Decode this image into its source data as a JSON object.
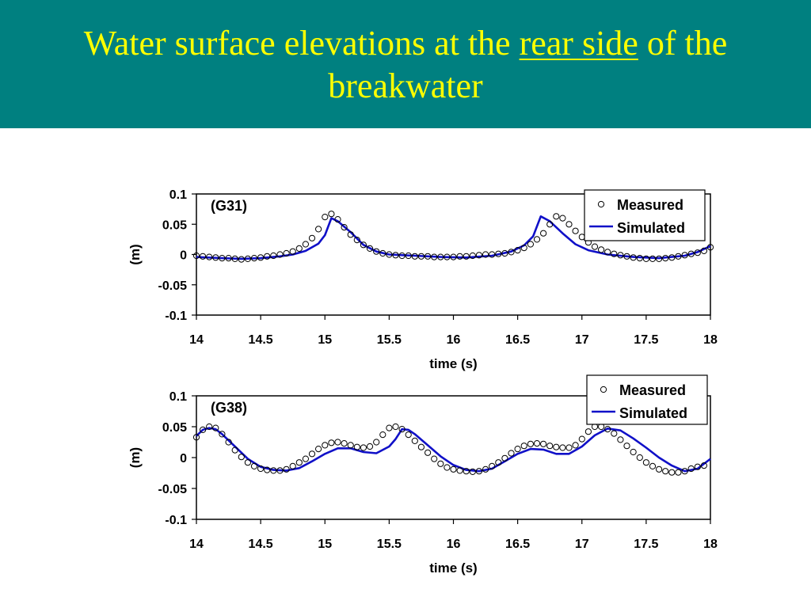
{
  "slide": {
    "title_part1": "Water surface elevations at the ",
    "title_underlined": "rear side",
    "title_part2": " of the breakwater",
    "title_color": "#ffff00",
    "header_color": "#008080"
  },
  "chart_data": [
    {
      "type": "line",
      "annotation": "(G31)",
      "xlabel": "time (s)",
      "ylabel": "(m)",
      "xlim": [
        14,
        18
      ],
      "ylim": [
        -0.1,
        0.1
      ],
      "xticks": [
        "14",
        "14.5",
        "15",
        "15.5",
        "16",
        "16.5",
        "17",
        "17.5",
        "18"
      ],
      "yticks": [
        "0.1",
        "0.05",
        "0",
        "-0.05",
        "-0.1"
      ],
      "grid": false,
      "legend_position": "top-right",
      "series": [
        {
          "name": "Measured",
          "style": "markers",
          "marker": "open-circle",
          "color": "#000000",
          "x": [
            14.0,
            14.05,
            14.1,
            14.15,
            14.2,
            14.25,
            14.3,
            14.35,
            14.4,
            14.45,
            14.5,
            14.55,
            14.6,
            14.65,
            14.7,
            14.75,
            14.8,
            14.85,
            14.9,
            14.95,
            15.0,
            15.05,
            15.1,
            15.15,
            15.2,
            15.25,
            15.3,
            15.35,
            15.4,
            15.45,
            15.5,
            15.55,
            15.6,
            15.65,
            15.7,
            15.75,
            15.8,
            15.85,
            15.9,
            15.95,
            16.0,
            16.05,
            16.1,
            16.15,
            16.2,
            16.25,
            16.3,
            16.35,
            16.4,
            16.45,
            16.5,
            16.55,
            16.6,
            16.65,
            16.7,
            16.75,
            16.8,
            16.85,
            16.9,
            16.95,
            17.0,
            17.05,
            17.1,
            17.15,
            17.2,
            17.25,
            17.3,
            17.35,
            17.4,
            17.45,
            17.5,
            17.55,
            17.6,
            17.65,
            17.7,
            17.75,
            17.8,
            17.85,
            17.9,
            17.95,
            18.0
          ],
          "y": [
            -0.002,
            -0.003,
            -0.004,
            -0.005,
            -0.006,
            -0.006,
            -0.007,
            -0.008,
            -0.007,
            -0.006,
            -0.005,
            -0.003,
            -0.002,
            0.0,
            0.002,
            0.005,
            0.01,
            0.017,
            0.027,
            0.042,
            0.062,
            0.067,
            0.058,
            0.045,
            0.033,
            0.024,
            0.016,
            0.01,
            0.005,
            0.002,
            0.0,
            -0.001,
            -0.002,
            -0.002,
            -0.003,
            -0.003,
            -0.003,
            -0.004,
            -0.004,
            -0.004,
            -0.004,
            -0.003,
            -0.003,
            -0.002,
            -0.001,
            0.0,
            0.0,
            0.001,
            0.002,
            0.004,
            0.007,
            0.011,
            0.017,
            0.025,
            0.035,
            0.05,
            0.063,
            0.06,
            0.05,
            0.039,
            0.029,
            0.02,
            0.013,
            0.008,
            0.004,
            0.001,
            -0.001,
            -0.003,
            -0.005,
            -0.006,
            -0.007,
            -0.007,
            -0.007,
            -0.006,
            -0.005,
            -0.003,
            -0.001,
            0.001,
            0.003,
            0.006,
            0.012
          ]
        },
        {
          "name": "Simulated",
          "style": "line",
          "color": "#1010c8",
          "x": [
            14.0,
            14.2,
            14.35,
            14.5,
            14.65,
            14.75,
            14.85,
            14.95,
            15.0,
            15.05,
            15.1,
            15.2,
            15.3,
            15.4,
            15.5,
            15.7,
            15.9,
            16.1,
            16.3,
            16.45,
            16.55,
            16.62,
            16.68,
            16.75,
            16.85,
            16.95,
            17.05,
            17.2,
            17.4,
            17.6,
            17.8,
            17.9,
            18.0
          ],
          "y": [
            -0.004,
            -0.006,
            -0.007,
            -0.006,
            -0.003,
            0.0,
            0.006,
            0.018,
            0.032,
            0.06,
            0.055,
            0.037,
            0.016,
            0.005,
            0.0,
            -0.002,
            -0.004,
            -0.005,
            -0.002,
            0.005,
            0.015,
            0.03,
            0.063,
            0.055,
            0.035,
            0.017,
            0.007,
            0.0,
            -0.004,
            -0.006,
            -0.002,
            0.004,
            0.014
          ]
        }
      ]
    },
    {
      "type": "line",
      "annotation": "(G38)",
      "xlabel": "time (s)",
      "ylabel": "(m)",
      "xlim": [
        14,
        18
      ],
      "ylim": [
        -0.1,
        0.1
      ],
      "xticks": [
        "14",
        "14.5",
        "15",
        "15.5",
        "16",
        "16.5",
        "17",
        "17.5",
        "18"
      ],
      "yticks": [
        "0.1",
        "0.05",
        "0",
        "-0.05",
        "-0.1"
      ],
      "grid": false,
      "legend_position": "top-right",
      "series": [
        {
          "name": "Measured",
          "style": "markers",
          "marker": "open-circle",
          "color": "#000000",
          "x": [
            14.0,
            14.05,
            14.1,
            14.15,
            14.2,
            14.25,
            14.3,
            14.35,
            14.4,
            14.45,
            14.5,
            14.55,
            14.6,
            14.65,
            14.7,
            14.75,
            14.8,
            14.85,
            14.9,
            14.95,
            15.0,
            15.05,
            15.1,
            15.15,
            15.2,
            15.25,
            15.3,
            15.35,
            15.4,
            15.45,
            15.5,
            15.55,
            15.6,
            15.65,
            15.7,
            15.75,
            15.8,
            15.85,
            15.9,
            15.95,
            16.0,
            16.05,
            16.1,
            16.15,
            16.2,
            16.25,
            16.3,
            16.35,
            16.4,
            16.45,
            16.5,
            16.55,
            16.6,
            16.65,
            16.7,
            16.75,
            16.8,
            16.85,
            16.9,
            16.95,
            17.0,
            17.05,
            17.1,
            17.15,
            17.2,
            17.25,
            17.3,
            17.35,
            17.4,
            17.45,
            17.5,
            17.55,
            17.6,
            17.65,
            17.7,
            17.75,
            17.8,
            17.85,
            17.9,
            17.95
          ],
          "y": [
            0.033,
            0.045,
            0.05,
            0.048,
            0.038,
            0.025,
            0.012,
            0.001,
            -0.008,
            -0.014,
            -0.018,
            -0.02,
            -0.021,
            -0.021,
            -0.019,
            -0.014,
            -0.008,
            -0.002,
            0.006,
            0.014,
            0.02,
            0.024,
            0.025,
            0.023,
            0.02,
            0.017,
            0.016,
            0.018,
            0.025,
            0.037,
            0.048,
            0.05,
            0.046,
            0.037,
            0.027,
            0.017,
            0.008,
            -0.002,
            -0.01,
            -0.016,
            -0.019,
            -0.021,
            -0.022,
            -0.023,
            -0.022,
            -0.019,
            -0.014,
            -0.008,
            -0.001,
            0.007,
            0.014,
            0.019,
            0.022,
            0.023,
            0.022,
            0.019,
            0.017,
            0.016,
            0.016,
            0.02,
            0.03,
            0.042,
            0.05,
            0.05,
            0.046,
            0.039,
            0.029,
            0.019,
            0.009,
            0.0,
            -0.008,
            -0.014,
            -0.019,
            -0.022,
            -0.024,
            -0.024,
            -0.022,
            -0.018,
            -0.015,
            -0.013
          ]
        },
        {
          "name": "Simulated",
          "style": "line",
          "color": "#1010c8",
          "x": [
            14.0,
            14.05,
            14.1,
            14.15,
            14.2,
            14.3,
            14.4,
            14.5,
            14.6,
            14.7,
            14.8,
            14.9,
            15.0,
            15.1,
            15.2,
            15.3,
            15.4,
            15.5,
            15.55,
            15.6,
            15.65,
            15.7,
            15.8,
            15.9,
            16.0,
            16.1,
            16.2,
            16.3,
            16.4,
            16.5,
            16.6,
            16.7,
            16.8,
            16.9,
            17.0,
            17.1,
            17.2,
            17.3,
            17.4,
            17.5,
            17.6,
            17.7,
            17.8,
            17.9,
            18.0
          ],
          "y": [
            0.035,
            0.045,
            0.048,
            0.046,
            0.038,
            0.018,
            -0.002,
            -0.015,
            -0.02,
            -0.021,
            -0.017,
            -0.006,
            0.006,
            0.015,
            0.015,
            0.009,
            0.007,
            0.018,
            0.03,
            0.046,
            0.045,
            0.038,
            0.02,
            0.002,
            -0.012,
            -0.02,
            -0.022,
            -0.018,
            -0.006,
            0.006,
            0.014,
            0.013,
            0.006,
            0.006,
            0.018,
            0.036,
            0.047,
            0.044,
            0.031,
            0.016,
            0.0,
            -0.013,
            -0.022,
            -0.018,
            -0.002
          ]
        }
      ]
    }
  ]
}
